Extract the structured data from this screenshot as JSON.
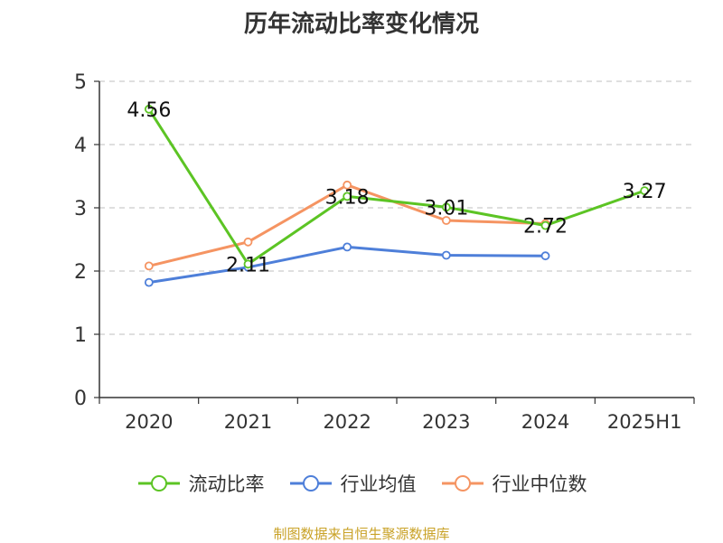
{
  "title": "历年流动比率变化情况",
  "source": "制图数据来自恒生聚源数据库",
  "legend": [
    {
      "name": "流动比率",
      "color": "#5CC424"
    },
    {
      "name": "行业均值",
      "color": "#4E7FD9"
    },
    {
      "name": "行业中位数",
      "color": "#F59462"
    }
  ],
  "chart_data": {
    "type": "line",
    "title": "历年流动比率变化情况",
    "xlabel": "",
    "ylabel": "",
    "ylim": [
      0,
      5
    ],
    "yticks": [
      "0",
      "1",
      "2",
      "3",
      "4",
      "5"
    ],
    "categories": [
      "2020",
      "2021",
      "2022",
      "2023",
      "2024",
      "2025H1"
    ],
    "grid": true,
    "legend_position": "bottom",
    "series": [
      {
        "name": "流动比率",
        "color": "#5CC424",
        "values": [
          4.56,
          2.11,
          3.18,
          3.01,
          2.72,
          3.27
        ],
        "labels": [
          "4.56",
          "2.11",
          "3.18",
          "3.01",
          "2.72",
          "3.27"
        ]
      },
      {
        "name": "行业均值",
        "color": "#4E7FD9",
        "values": [
          1.82,
          2.06,
          2.38,
          2.25,
          2.24,
          null
        ]
      },
      {
        "name": "行业中位数",
        "color": "#F59462",
        "values": [
          2.08,
          2.46,
          3.36,
          2.8,
          2.75,
          null
        ]
      }
    ]
  }
}
